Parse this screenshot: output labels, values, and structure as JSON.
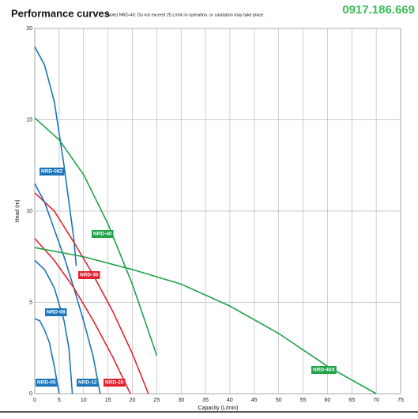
{
  "chart_data": {
    "type": "line",
    "title": "Performance curves",
    "subtitle": "(Note) NRD-40: Do not exceed 25 L/min in operation, or cavitation may take place.",
    "annotation": "0917.186.669",
    "x_label": "Capacity (L/min)",
    "y_label": "Head (m)",
    "xlim": [
      0,
      75
    ],
    "ylim": [
      0,
      20
    ],
    "xticks": [
      0,
      5,
      10,
      15,
      20,
      25,
      30,
      35,
      40,
      45,
      50,
      55,
      60,
      65,
      70,
      75
    ],
    "yticks": [
      0,
      5,
      10,
      15,
      20
    ],
    "grid": true,
    "series": [
      {
        "name": "NRD-08Z",
        "color": "#1a75bc",
        "x": [
          0,
          2,
          4,
          6,
          8,
          8.5
        ],
        "values": [
          19,
          18,
          16,
          12.5,
          8.5,
          7
        ]
      },
      {
        "name": "NRD-40",
        "color": "#1fa24a",
        "x": [
          0,
          5,
          10,
          15,
          20,
          25
        ],
        "values": [
          15.1,
          13.9,
          12,
          9.3,
          6,
          2.1
        ]
      },
      {
        "name": "NRD-30",
        "color": "#e3212d",
        "x": [
          0,
          4,
          8,
          12,
          16,
          20,
          23.3
        ],
        "values": [
          11,
          10,
          8.3,
          6.5,
          4.5,
          2.2,
          0
        ]
      },
      {
        "name": "NRD-08",
        "color": "#1a75bc",
        "x": [
          0,
          2,
          4,
          6,
          7,
          7.7
        ],
        "values": [
          7.3,
          6.8,
          5.8,
          4,
          2.5,
          0
        ]
      },
      {
        "name": "NRD-05",
        "color": "#1a75bc",
        "x": [
          0,
          1,
          2,
          3,
          4,
          5
        ],
        "values": [
          4.1,
          4,
          3.5,
          2.8,
          1.5,
          0
        ]
      },
      {
        "name": "NRD-12",
        "color": "#1a75bc",
        "x": [
          0,
          2,
          4,
          6,
          8,
          10,
          12,
          13.4
        ],
        "values": [
          11.5,
          10.5,
          9,
          7.5,
          5.8,
          4,
          2,
          0
        ]
      },
      {
        "name": "NRD-20",
        "color": "#e3212d",
        "x": [
          0,
          4,
          8,
          12,
          16,
          19.6
        ],
        "values": [
          8.5,
          7.3,
          5.8,
          4,
          2,
          0
        ]
      },
      {
        "name": "NRD-40X",
        "color": "#1fa24a",
        "x": [
          0,
          10,
          20,
          30,
          40,
          50,
          60,
          70
        ],
        "values": [
          8,
          7.5,
          6.8,
          6,
          4.8,
          3.3,
          1.5,
          0
        ]
      }
    ]
  }
}
